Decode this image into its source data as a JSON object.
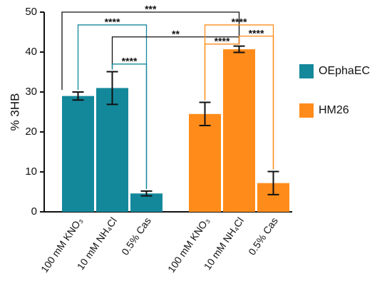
{
  "chart_data": {
    "type": "bar",
    "ylabel": "% 3HB",
    "ylim": [
      0,
      50
    ],
    "yticks": [
      0,
      10,
      20,
      30,
      40,
      50
    ],
    "categories": [
      "100 mM KNO₃",
      "10 mM NH₄Cl",
      "0.5% Cas"
    ],
    "series": [
      {
        "name": "OEphaEC",
        "color": "#14889b",
        "values": [
          29,
          31,
          4.6
        ],
        "errors": [
          1.0,
          4.1,
          0.6
        ]
      },
      {
        "name": "HM26",
        "color": "#ff8c1a",
        "values": [
          24.5,
          40.7,
          7.2
        ],
        "errors": [
          2.9,
          0.8,
          2.9
        ]
      }
    ],
    "annotations": [
      {
        "label": "***",
        "from": [
          0,
          0
        ],
        "to": [
          1,
          1
        ],
        "y": 50,
        "color": "#111111"
      },
      {
        "label": "****",
        "from": [
          0,
          0
        ],
        "to": [
          0,
          2
        ],
        "y": 46.8,
        "color": "#14889b"
      },
      {
        "label": "**",
        "from": [
          0,
          1
        ],
        "to": [
          1,
          1
        ],
        "y": 43.8,
        "color": "#111111"
      },
      {
        "label": "****",
        "from": [
          0,
          1
        ],
        "to": [
          0,
          2
        ],
        "y": 37,
        "color": "#14889b"
      },
      {
        "label": "****",
        "from": [
          1,
          0
        ],
        "to": [
          1,
          2
        ],
        "y": 46.8,
        "color": "#ff8c1a"
      },
      {
        "label": "****",
        "from": [
          1,
          1
        ],
        "to": [
          1,
          2
        ],
        "y": 44,
        "color": "#ff8c1a"
      },
      {
        "label": "****",
        "from": [
          1,
          0
        ],
        "to": [
          1,
          1
        ],
        "y": 42,
        "color": "#ff8c1a"
      }
    ]
  }
}
